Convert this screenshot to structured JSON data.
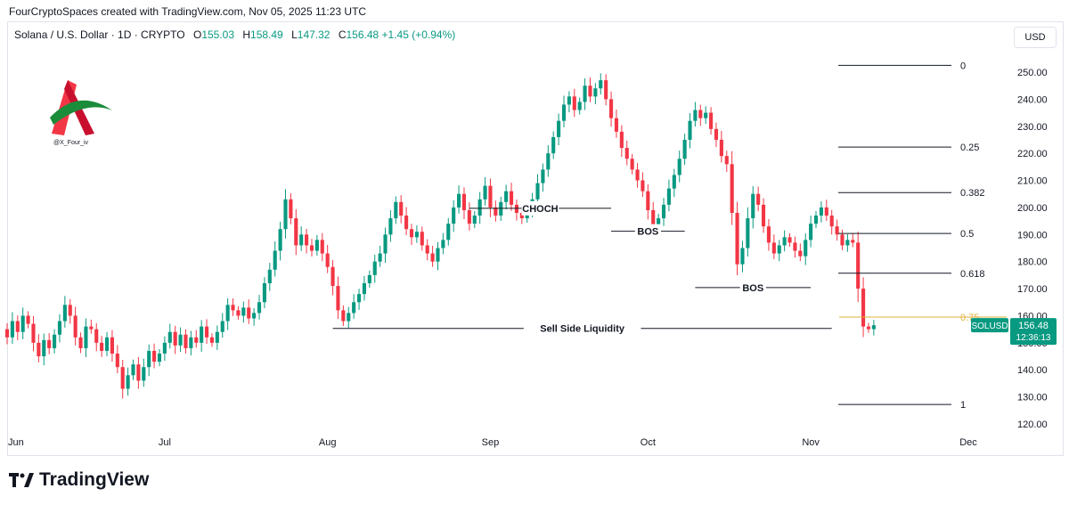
{
  "caption": "FourCryptoSpaces created with TradingView.com, Nov 05, 2025 11:23 UTC",
  "legend": {
    "symbol": "Solana / U.S. Dollar · 1D · CRYPTO",
    "o_label": "O",
    "o": "155.03",
    "h_label": "H",
    "h": "158.49",
    "l_label": "L",
    "l": "147.32",
    "c_label": "C",
    "c": "156.48",
    "change": "+1.45 (+0.94%)"
  },
  "currency": "USD",
  "watermark": "@X_Four_iv",
  "footer_brand": "TradingView",
  "colors": {
    "up": "#089981",
    "down": "#f23645",
    "fib_075": "#e0b13c",
    "line": "#131722"
  },
  "chart_data": {
    "type": "candlestick",
    "y_axis": {
      "min": 120,
      "max": 250,
      "ticks": [
        "250.00",
        "240.00",
        "230.00",
        "220.00",
        "210.00",
        "200.00",
        "190.00",
        "180.00",
        "170.00",
        "160.00",
        "150.00",
        "140.00",
        "130.00",
        "120.00"
      ]
    },
    "x_axis": {
      "labels": [
        "Jun",
        "Jul",
        "Aug",
        "Sep",
        "Oct",
        "Nov",
        "Dec"
      ]
    },
    "price_tag": {
      "symbol": "SOLUSD",
      "price": "156.48",
      "countdown": "12:36:13"
    },
    "fibonacci": [
      {
        "level": "0",
        "price": 252.5
      },
      {
        "level": "0.25",
        "price": 222.3
      },
      {
        "level": "0.382",
        "price": 205.5
      },
      {
        "level": "0.5",
        "price": 190.4
      },
      {
        "level": "0.618",
        "price": 175.7
      },
      {
        "level": "0.75",
        "price": 159.5
      },
      {
        "level": "1",
        "price": 127.2
      }
    ],
    "annotations": [
      {
        "label": "CHOCH",
        "price": 199.7,
        "from": "2025-08-28",
        "to": "2025-09-24"
      },
      {
        "label": "BOS",
        "price": 191.2,
        "from": "2025-09-24",
        "to": "2025-10-08"
      },
      {
        "label": "BOS",
        "price": 170.4,
        "from": "2025-10-10",
        "to": "2025-11-01"
      },
      {
        "label": "Sell Side Liquidity",
        "price": 155.3,
        "from": "2025-08-02",
        "to": "2025-11-05"
      }
    ],
    "close_series_start": "2025-05-31",
    "closes": [
      155.0,
      152.0,
      158.0,
      154.0,
      160.0,
      157.0,
      150.0,
      145.0,
      151.0,
      148.0,
      153.0,
      158.0,
      164.0,
      160.0,
      152.0,
      148.0,
      156.0,
      155.0,
      150.0,
      147.0,
      152.0,
      146.0,
      141.0,
      133.0,
      138.0,
      142.0,
      136.0,
      141.0,
      147.0,
      143.0,
      146.0,
      150.0,
      154.0,
      149.0,
      153.0,
      148.0,
      152.0,
      150.0,
      156.0,
      152.0,
      150.0,
      154.0,
      158.0,
      164.0,
      162.0,
      160.0,
      163.0,
      159.0,
      161.0,
      165.0,
      172.0,
      177.0,
      184.0,
      192.0,
      203.0,
      196.0,
      186.0,
      190.0,
      186.0,
      184.0,
      188.0,
      183.0,
      178.0,
      171.0,
      162.0,
      158.0,
      161.0,
      165.0,
      168.0,
      172.0,
      175.0,
      180.0,
      183.0,
      190.0,
      196.0,
      202.0,
      197.0,
      192.0,
      189.0,
      191.0,
      186.0,
      183.0,
      180.0,
      185.0,
      188.0,
      194.0,
      200.0,
      205.0,
      199.0,
      194.0,
      197.0,
      203.0,
      208.0,
      200.0,
      197.0,
      202.0,
      206.0,
      201.0,
      198.0,
      196.0,
      199.0,
      203.0,
      209.0,
      214.0,
      220.0,
      226.0,
      232.0,
      238.0,
      241.0,
      236.0,
      239.0,
      245.0,
      241.0,
      244.0,
      247.0,
      240.0,
      233.0,
      228.0,
      222.0,
      218.0,
      214.0,
      210.0,
      206.0,
      199.0,
      193.0,
      196.0,
      201.0,
      207.0,
      212.0,
      218.0,
      225.0,
      232.0,
      236.0,
      233.0,
      235.0,
      229.0,
      225.0,
      219.0,
      216.0,
      198.0,
      179.0,
      185.0,
      196.0,
      205.0,
      201.0,
      193.0,
      187.0,
      183.0,
      186.0,
      189.0,
      187.0,
      184.0,
      182.0,
      188.0,
      194.0,
      197.0,
      200.0,
      197.0,
      193.0,
      190.0,
      186.0,
      188.0,
      187.0,
      170.0,
      156.0,
      155.03,
      156.48
    ]
  }
}
